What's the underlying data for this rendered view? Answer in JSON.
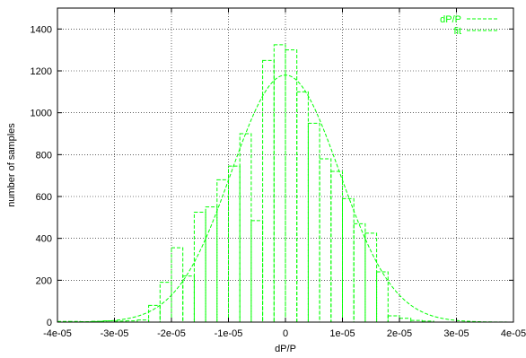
{
  "chart_data": {
    "type": "bar",
    "xlabel": "dP/P",
    "ylabel": "number of samples",
    "xlim": [
      -4e-05,
      4e-05
    ],
    "ylim": [
      0,
      1500
    ],
    "x_ticks": [
      -4e-05,
      -3e-05,
      -2e-05,
      -1e-05,
      0,
      1e-05,
      2e-05,
      3e-05,
      4e-05
    ],
    "x_tick_labels": [
      "-4e-05",
      "-3e-05",
      "-2e-05",
      "-1e-05",
      "0",
      "1e-05",
      "2e-05",
      "3e-05",
      "4e-05"
    ],
    "y_ticks": [
      0,
      200,
      400,
      600,
      800,
      1000,
      1200,
      1400
    ],
    "y_tick_labels": [
      "0",
      "200",
      "400",
      "600",
      "800",
      "1000",
      "1200",
      "1400"
    ],
    "grid": true,
    "legend_position": "top-right",
    "color": "#00ff00",
    "series": [
      {
        "name": "dP/P",
        "type": "histogram",
        "bin_width": 1e-06,
        "bin_centers": [
          -3.9e-05,
          -3.7e-05,
          -3.5e-05,
          -3.3e-05,
          -3.1e-05,
          -2.9e-05,
          -2.7e-05,
          -2.5e-05,
          -2.3e-05,
          -2.1e-05,
          -1.9e-05,
          -1.7e-05,
          -1.5e-05,
          -1.3e-05,
          -1.1e-05,
          -9e-06,
          -7e-06,
          -5e-06,
          -3e-06,
          -1e-06,
          1e-06,
          3e-06,
          5e-06,
          7e-06,
          9e-06,
          1.1e-05,
          1.3e-05,
          1.5e-05,
          1.7e-05,
          1.9e-05,
          2.1e-05,
          2.3e-05,
          2.5e-05
        ],
        "values": [
          3,
          3,
          2,
          4,
          6,
          5,
          6,
          10,
          80,
          190,
          355,
          220,
          525,
          550,
          680,
          745,
          900,
          485,
          1250,
          1325,
          1300,
          1100,
          950,
          780,
          720,
          590,
          470,
          425,
          240,
          30,
          18,
          8,
          5
        ]
      },
      {
        "name": "fit",
        "type": "gaussian",
        "amplitude": 1180,
        "mean": 0,
        "sigma": 9.5e-06
      }
    ]
  }
}
